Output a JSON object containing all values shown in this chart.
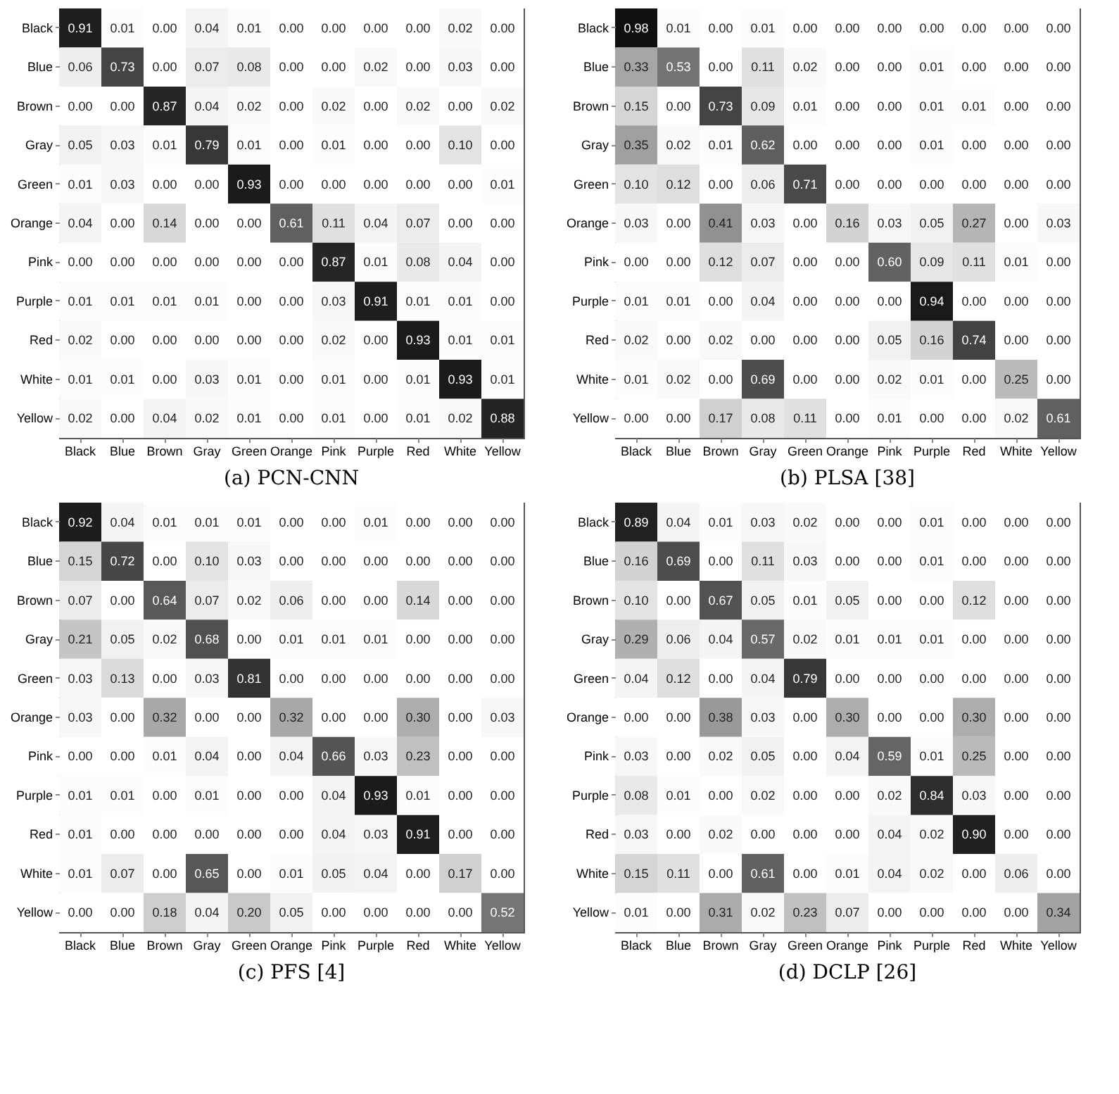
{
  "chart_data": [
    {
      "type": "heatmap",
      "title": "(a) PCN-CNN",
      "categories": [
        "Black",
        "Blue",
        "Brown",
        "Gray",
        "Green",
        "Orange",
        "Pink",
        "Purple",
        "Red",
        "White",
        "Yellow"
      ],
      "y_categories": [
        "Black",
        "Blue",
        "Brown",
        "Gray",
        "Green",
        "Orange",
        "Pink",
        "Purple",
        "Red",
        "White",
        "Yellow"
      ],
      "cells": [
        [
          0.91,
          0.01,
          0.0,
          0.04,
          0.01,
          0.0,
          0.0,
          0.0,
          0.0,
          0.02,
          0.0
        ],
        [
          0.06,
          0.73,
          0.0,
          0.07,
          0.08,
          0.0,
          0.0,
          0.02,
          0.0,
          0.03,
          0.0
        ],
        [
          0.0,
          0.0,
          0.87,
          0.04,
          0.02,
          0.0,
          0.02,
          0.0,
          0.02,
          0.0,
          0.02
        ],
        [
          0.05,
          0.03,
          0.01,
          0.79,
          0.01,
          0.0,
          0.01,
          0.0,
          0.0,
          0.1,
          0.0
        ],
        [
          0.01,
          0.03,
          0.0,
          0.0,
          0.93,
          0.0,
          0.0,
          0.0,
          0.0,
          0.0,
          0.01
        ],
        [
          0.04,
          0.0,
          0.14,
          0.0,
          0.0,
          0.61,
          0.11,
          0.04,
          0.07,
          0.0,
          0.0
        ],
        [
          0.0,
          0.0,
          0.0,
          0.0,
          0.0,
          0.0,
          0.87,
          0.01,
          0.08,
          0.04,
          0.0
        ],
        [
          0.01,
          0.01,
          0.01,
          0.01,
          0.0,
          0.0,
          0.03,
          0.91,
          0.01,
          0.01,
          0.0
        ],
        [
          0.02,
          0.0,
          0.0,
          0.0,
          0.0,
          0.0,
          0.02,
          0.0,
          0.93,
          0.01,
          0.01
        ],
        [
          0.01,
          0.01,
          0.0,
          0.03,
          0.01,
          0.0,
          0.01,
          0.0,
          0.01,
          0.93,
          0.01
        ],
        [
          0.02,
          0.0,
          0.04,
          0.02,
          0.01,
          0.0,
          0.01,
          0.0,
          0.01,
          0.02,
          0.88
        ]
      ],
      "cell_labels": [
        [
          "0.91",
          "0.01",
          "0.00",
          "0.04",
          "0.01",
          "0.00",
          "0.00",
          "0.00",
          "0.00",
          "0.02",
          "0.00"
        ],
        [
          "0.06",
          "0.73",
          "0.00",
          "0.07",
          "0.08",
          "0.00",
          "0.00",
          "0.02",
          "0.00",
          "0.03",
          "0.00"
        ],
        [
          "0.00",
          "0.00",
          "0.87",
          "0.04",
          "0.02",
          "0.00",
          "0.02",
          "0.00",
          "0.02",
          "0.00",
          "0.02"
        ],
        [
          "0.05",
          "0.03",
          "0.01",
          "0.79",
          "0.01",
          "0.00",
          "0.01",
          "0.00",
          "0.00",
          "0.10",
          "0.00"
        ],
        [
          "0.01",
          "0.03",
          "0.00",
          "0.00",
          "0.93",
          "0.00",
          "0.00",
          "0.00",
          "0.00",
          "0.00",
          "0.01"
        ],
        [
          "0.04",
          "0.00",
          "0.14",
          "0.00",
          "0.00",
          "0.61",
          "0.11",
          "0.04",
          "0.07",
          "0.00",
          "0.00"
        ],
        [
          "0.00",
          "0.00",
          "0.00",
          "0.00",
          "0.00",
          "0.00",
          "0.87",
          "0.01",
          "0.08",
          "0.04",
          "0.00"
        ],
        [
          "0.01",
          "0.01",
          "0.01",
          "0.01",
          "0.00",
          "0.00",
          "0.03",
          "0.91",
          "0.01",
          "0.01",
          "0.00"
        ],
        [
          "0.02",
          "0.00",
          "0.00",
          "0.00",
          "0.00",
          "0.00",
          "0.02",
          "0.00",
          "0.93",
          "0.01",
          "0.01"
        ],
        [
          "0.01",
          "0.01",
          "0.00",
          "0.03",
          "0.01",
          "0.00",
          "0.01",
          "0.00",
          "0.01",
          "0.93",
          "0.01"
        ],
        [
          "0.02",
          "0.00",
          "0.04",
          "0.02",
          "0.01",
          "0.00",
          "0.01",
          "0.00",
          "0.01",
          "0.02",
          "0.88"
        ]
      ]
    },
    {
      "type": "heatmap",
      "title": "(b) PLSA [38]",
      "categories": [
        "Black",
        "Blue",
        "Brown",
        "Gray",
        "Green",
        "Orange",
        "Pink",
        "Purple",
        "Red",
        "White",
        "Yellow"
      ],
      "y_categories": [
        "Black",
        "Blue",
        "Brown",
        "Gray",
        "Green",
        "Orange",
        "Pink",
        "Purple",
        "Red",
        "White",
        "Yellow"
      ],
      "cells": [
        [
          0.98,
          0.01,
          0.0,
          0.01,
          0.0,
          0.0,
          0.0,
          0.0,
          0.0,
          0.0,
          0.0
        ],
        [
          0.33,
          0.53,
          0.0,
          0.11,
          0.02,
          0.0,
          0.0,
          0.01,
          0.0,
          0.0,
          0.0
        ],
        [
          0.15,
          0.0,
          0.73,
          0.09,
          0.01,
          0.0,
          0.0,
          0.01,
          0.01,
          0.0,
          0.0
        ],
        [
          0.35,
          0.02,
          0.01,
          0.62,
          0.0,
          0.0,
          0.0,
          0.01,
          0.0,
          0.0,
          0.0
        ],
        [
          0.1,
          0.12,
          0.0,
          0.06,
          0.71,
          0.0,
          0.0,
          0.0,
          0.0,
          0.0,
          0.0
        ],
        [
          0.03,
          0.0,
          0.41,
          0.03,
          0.0,
          0.16,
          0.03,
          0.05,
          0.27,
          0.0,
          0.03
        ],
        [
          0.0,
          0.0,
          0.12,
          0.07,
          0.0,
          0.0,
          0.6,
          0.09,
          0.11,
          0.01,
          0.0
        ],
        [
          0.01,
          0.01,
          0.0,
          0.04,
          0.0,
          0.0,
          0.0,
          0.94,
          0.0,
          0.0,
          0.0
        ],
        [
          0.02,
          0.0,
          0.02,
          0.0,
          0.0,
          0.0,
          0.05,
          0.16,
          0.74,
          0.0,
          0.0
        ],
        [
          0.01,
          0.02,
          0.0,
          0.69,
          0.0,
          0.0,
          0.02,
          0.01,
          0.0,
          0.25,
          0.0
        ],
        [
          0.0,
          0.0,
          0.17,
          0.08,
          0.11,
          0.0,
          0.01,
          0.0,
          0.0,
          0.02,
          0.61
        ]
      ],
      "cell_labels": [
        [
          "0.98",
          "0.01",
          "0.00",
          "0.01",
          "0.00",
          "0.00",
          "0.00",
          "0.00",
          "0.00",
          "0.00",
          "0.00"
        ],
        [
          "0.33",
          "0.53",
          "0.00",
          "0.11",
          "0.02",
          "0.00",
          "0.00",
          "0.01",
          "0.00",
          "0.00",
          "0.00"
        ],
        [
          "0.15",
          "0.00",
          "0.73",
          "0.09",
          "0.01",
          "0.00",
          "0.00",
          "0.01",
          "0.01",
          "0.00",
          "0.00"
        ],
        [
          "0.35",
          "0.02",
          "0.01",
          "0.62",
          "0.00",
          "0.00",
          "0.00",
          "0.01",
          "0.00",
          "0.00",
          "0.00"
        ],
        [
          "0.10",
          "0.12",
          "0.00",
          "0.06",
          "0.71",
          "0.00",
          "0.00",
          "0.00",
          "0.00",
          "0.00",
          "0.00"
        ],
        [
          "0.03",
          "0.00",
          "0.41",
          "0.03",
          "0.00",
          "0.16",
          "0.03",
          "0.05",
          "0.27",
          "0.00",
          "0.03"
        ],
        [
          "0.00",
          "0.00",
          "0.12",
          "0.07",
          "0.00",
          "0.00",
          "0.60",
          "0.09",
          "0.11",
          "0.01",
          "0.00"
        ],
        [
          "0.01",
          "0.01",
          "0.00",
          "0.04",
          "0.00",
          "0.00",
          "0.00",
          "0.94",
          "0.00",
          "0.00",
          "0.00"
        ],
        [
          "0.02",
          "0.00",
          "0.02",
          "0.00",
          "0.00",
          "0.00",
          "0.05",
          "0.16",
          "0.74",
          "0.00",
          "0.00"
        ],
        [
          "0.01",
          "0.02",
          "0.00",
          "0.69",
          "0.00",
          "0.00",
          "0.02",
          "0.01",
          "0.00",
          "0.25",
          "0.00"
        ],
        [
          "0.00",
          "0.00",
          "0.17",
          "0.08",
          "0.11",
          "0.00",
          "0.01",
          "0.00",
          "0.00",
          "0.02",
          "0.61"
        ]
      ]
    },
    {
      "type": "heatmap",
      "title": "(c) PFS [4]",
      "categories": [
        "Black",
        "Blue",
        "Brown",
        "Gray",
        "Green",
        "Orange",
        "Pink",
        "Purple",
        "Red",
        "White",
        "Yellow"
      ],
      "y_categories": [
        "Black",
        "Blue",
        "Brown",
        "Gray",
        "Green",
        "Orange",
        "Pink",
        "Purple",
        "Red",
        "White",
        "Yellow"
      ],
      "cells": [
        [
          0.92,
          0.04,
          0.01,
          0.01,
          0.01,
          0.0,
          0.0,
          0.01,
          0.0,
          0.0,
          0.0
        ],
        [
          0.15,
          0.72,
          0.0,
          0.1,
          0.03,
          0.0,
          0.0,
          0.0,
          0.0,
          0.0,
          0.0
        ],
        [
          0.07,
          0.0,
          0.64,
          0.07,
          0.02,
          0.06,
          0.0,
          0.0,
          0.14,
          0.0,
          0.0
        ],
        [
          0.21,
          0.05,
          0.02,
          0.68,
          0.0,
          0.01,
          0.01,
          0.01,
          0.0,
          0.0,
          0.0
        ],
        [
          0.03,
          0.13,
          0.0,
          0.03,
          0.81,
          0.0,
          0.0,
          0.0,
          0.0,
          0.0,
          0.0
        ],
        [
          0.03,
          0.0,
          0.32,
          0.0,
          0.0,
          0.32,
          0.0,
          0.0,
          0.3,
          0.0,
          0.03
        ],
        [
          0.0,
          0.0,
          0.01,
          0.04,
          0.0,
          0.04,
          0.66,
          0.03,
          0.23,
          0.0,
          0.0
        ],
        [
          0.01,
          0.01,
          0.0,
          0.01,
          0.0,
          0.0,
          0.04,
          0.93,
          0.01,
          0.0,
          0.0
        ],
        [
          0.01,
          0.0,
          0.0,
          0.0,
          0.0,
          0.0,
          0.04,
          0.03,
          0.91,
          0.0,
          0.0
        ],
        [
          0.01,
          0.07,
          0.0,
          0.65,
          0.0,
          0.01,
          0.05,
          0.04,
          0.0,
          0.17,
          0.0
        ],
        [
          0.0,
          0.0,
          0.18,
          0.04,
          0.2,
          0.05,
          0.0,
          0.0,
          0.0,
          0.0,
          0.52
        ]
      ],
      "cell_labels": [
        [
          "0.92",
          "0.04",
          "0.01",
          "0.01",
          "0.01",
          "0.00",
          "0.00",
          "0.01",
          "0.00",
          "0.00",
          "0.00"
        ],
        [
          "0.15",
          "0.72",
          "0.00",
          "0.10",
          "0.03",
          "0.00",
          "0.00",
          "0.00",
          "0.00",
          "0.00",
          "0.00"
        ],
        [
          "0.07",
          "0.00",
          "0.64",
          "0.07",
          "0.02",
          "0.06",
          "0.00",
          "0.00",
          "0.14",
          "0.00",
          "0.00"
        ],
        [
          "0.21",
          "0.05",
          "0.02",
          "0.68",
          "0.00",
          "0.01",
          "0.01",
          "0.01",
          "0.00",
          "0.00",
          "0.00"
        ],
        [
          "0.03",
          "0.13",
          "0.00",
          "0.03",
          "0.81",
          "0.00",
          "0.00",
          "0.00",
          "0.00",
          "0.00",
          "0.00"
        ],
        [
          "0.03",
          "0.00",
          "0.32",
          "0.00",
          "0.00",
          "0.32",
          "0.00",
          "0.00",
          "0.30",
          "0.00",
          "0.03"
        ],
        [
          "0.00",
          "0.00",
          "0.01",
          "0.04",
          "0.00",
          "0.04",
          "0.66",
          "0.03",
          "0.23",
          "0.00",
          "0.00"
        ],
        [
          "0.01",
          "0.01",
          "0.00",
          "0.01",
          "0.00",
          "0.00",
          "0.04",
          "0.93",
          "0.01",
          "0.00",
          "0.00"
        ],
        [
          "0.01",
          "0.00",
          "0.00",
          "0.00",
          "0.00",
          "0.00",
          "0.04",
          "0.03",
          "0.91",
          "0.00",
          "0.00"
        ],
        [
          "0.01",
          "0.07",
          "0.00",
          "0.65",
          "0.00",
          "0.01",
          "0.05",
          "0.04",
          "0.00",
          "0.17",
          "0.00"
        ],
        [
          "0.00",
          "0.00",
          "0.18",
          "0.04",
          "0.20",
          "0.05",
          "0.00",
          "0.00",
          "0.00",
          "0.00",
          "0.52"
        ]
      ]
    },
    {
      "type": "heatmap",
      "title": "(d) DCLP [26]",
      "categories": [
        "Black",
        "Blue",
        "Brown",
        "Gray",
        "Green",
        "Orange",
        "Pink",
        "Purple",
        "Red",
        "White",
        "Yellow"
      ],
      "y_categories": [
        "Black",
        "Blue",
        "Brown",
        "Gray",
        "Green",
        "Orange",
        "Pink",
        "Purple",
        "Red",
        "White",
        "Yellow"
      ],
      "cells": [
        [
          0.89,
          0.04,
          0.01,
          0.03,
          0.02,
          0.0,
          0.0,
          0.01,
          0.0,
          0.0,
          0.0
        ],
        [
          0.16,
          0.69,
          0.0,
          0.11,
          0.03,
          0.0,
          0.0,
          0.01,
          0.0,
          0.0,
          0.0
        ],
        [
          0.1,
          0.0,
          0.67,
          0.05,
          0.01,
          0.05,
          0.0,
          0.0,
          0.12,
          0.0,
          0.0
        ],
        [
          0.29,
          0.06,
          0.04,
          0.57,
          0.02,
          0.01,
          0.01,
          0.01,
          0.0,
          0.0,
          0.0
        ],
        [
          0.04,
          0.12,
          0.0,
          0.04,
          0.79,
          0.0,
          0.0,
          0.0,
          0.0,
          0.0,
          0.0
        ],
        [
          0.0,
          0.0,
          0.38,
          0.03,
          0.0,
          0.3,
          0.0,
          0.0,
          0.3,
          0.0,
          0.0
        ],
        [
          0.03,
          0.0,
          0.02,
          0.05,
          0.0,
          0.04,
          0.59,
          0.01,
          0.25,
          0.0,
          0.0
        ],
        [
          0.08,
          0.01,
          0.0,
          0.02,
          0.0,
          0.0,
          0.02,
          0.84,
          0.03,
          0.0,
          0.0
        ],
        [
          0.03,
          0.0,
          0.02,
          0.0,
          0.0,
          0.0,
          0.04,
          0.02,
          0.9,
          0.0,
          0.0
        ],
        [
          0.15,
          0.11,
          0.0,
          0.61,
          0.0,
          0.01,
          0.04,
          0.02,
          0.0,
          0.06,
          0.0
        ],
        [
          0.01,
          0.0,
          0.31,
          0.02,
          0.23,
          0.07,
          0.0,
          0.0,
          0.0,
          0.0,
          0.34
        ]
      ],
      "cell_labels": [
        [
          "0.89",
          "0.04",
          "0.01",
          "0.03",
          "0.02",
          "0.00",
          "0.00",
          "0.01",
          "0.00",
          "0.00",
          "0.00"
        ],
        [
          "0.16",
          "0.69",
          "0.00",
          "0.11",
          "0.03",
          "0.00",
          "0.00",
          "0.01",
          "0.00",
          "0.00",
          "0.00"
        ],
        [
          "0.10",
          "0.00",
          "0.67",
          "0.05",
          "0.01",
          "0.05",
          "0.00",
          "0.00",
          "0.12",
          "0.00",
          "0.00"
        ],
        [
          "0.29",
          "0.06",
          "0.04",
          "0.57",
          "0.02",
          "0.01",
          "0.01",
          "0.01",
          "0.00",
          "0.00",
          "0.00"
        ],
        [
          "0.04",
          "0.12",
          "0.00",
          "0.04",
          "0.79",
          "0.00",
          "0.00",
          "0.00",
          "0.00",
          "0.00",
          "0.00"
        ],
        [
          "0.00",
          "0.00",
          "0.38",
          "0.03",
          "0.00",
          "0.30",
          "0.00",
          "0.00",
          "0.30",
          "0.00",
          "0.00"
        ],
        [
          "0.03",
          "0.00",
          "0.02",
          "0.05",
          "0.00",
          "0.04",
          "0.59",
          "0.01",
          "0.25",
          "0.00",
          "0.00"
        ],
        [
          "0.08",
          "0.01",
          "0.00",
          "0.02",
          "0.00",
          "0.00",
          "0.02",
          "0.84",
          "0.03",
          "0.00",
          "0.00"
        ],
        [
          "0.03",
          "0.00",
          "0.02",
          "0.00",
          "0.00",
          "0.00",
          "0.04",
          "0.02",
          "0.90",
          "0.00",
          "0.00"
        ],
        [
          "0.15",
          "0.11",
          "0.00",
          "0.61",
          "0.00",
          "0.01",
          "0.04",
          "0.02",
          "0.00",
          "0.06",
          "0.00"
        ],
        [
          "0.01",
          "0.00",
          "0.31",
          "0.02",
          "0.23",
          "0.07",
          "0.00",
          "0.00",
          "0.00",
          "0.00",
          "0.34"
        ]
      ]
    }
  ]
}
